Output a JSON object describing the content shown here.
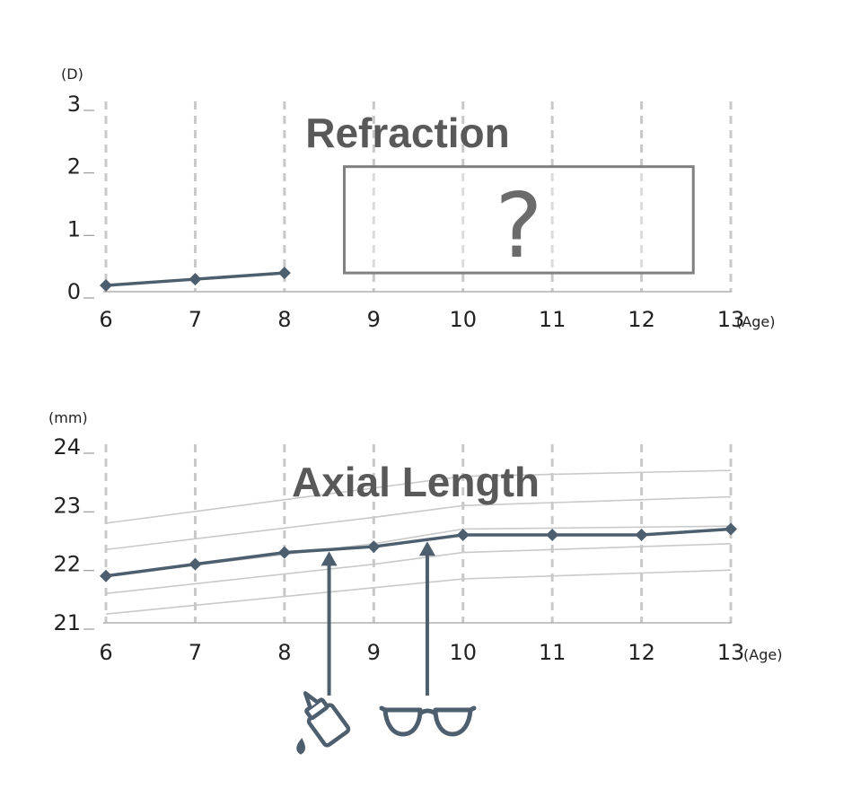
{
  "chart_data": [
    {
      "type": "line",
      "title": "Refraction",
      "yunit": "(D)",
      "xunit": "(Age)",
      "x_ticks": [
        "6",
        "7",
        "8",
        "9",
        "10",
        "11",
        "12",
        "13"
      ],
      "y_ticks": [
        "0",
        "1",
        "2",
        "3"
      ],
      "xlim": [
        6,
        13
      ],
      "ylim": [
        0,
        3
      ],
      "grid": "vertical dashed",
      "series": [
        {
          "x": [
            6,
            7,
            8
          ],
          "y": [
            0.1,
            0.2,
            0.3
          ],
          "marker": "diamond",
          "color": "#4d5e6e"
        }
      ],
      "annotation": {
        "text": "?",
        "x_range": [
          8.67,
          12.58
        ],
        "y_range": [
          0.3,
          2.0
        ]
      }
    },
    {
      "type": "line",
      "title": "Axial Length",
      "yunit": "(mm)",
      "xunit": "(Age)",
      "x_ticks": [
        "6",
        "7",
        "8",
        "9",
        "10",
        "11",
        "12",
        "13"
      ],
      "y_ticks": [
        "21",
        "22",
        "23",
        "24"
      ],
      "xlim": [
        6,
        13
      ],
      "ylim": [
        21,
        24
      ],
      "grid": "vertical dashed",
      "series": [
        {
          "x": [
            6,
            7,
            8,
            9,
            10,
            11,
            12,
            13
          ],
          "y": [
            21.8,
            22.0,
            22.2,
            22.3,
            22.5,
            22.5,
            22.5,
            22.6
          ],
          "marker": "diamond",
          "color": "#4d5e6e"
        }
      ],
      "reference_curves": [
        {
          "x": [
            6,
            9,
            10,
            13
          ],
          "y": [
            22.7,
            23.3,
            23.5,
            23.6
          ]
        },
        {
          "x": [
            6,
            9,
            10,
            13
          ],
          "y": [
            22.25,
            22.8,
            23.0,
            23.15
          ]
        },
        {
          "x": [
            6,
            9,
            10,
            13
          ],
          "y": [
            21.8,
            22.35,
            22.6,
            22.65
          ]
        },
        {
          "x": [
            6,
            9,
            10,
            13
          ],
          "y": [
            21.5,
            22.0,
            22.2,
            22.35
          ]
        },
        {
          "x": [
            6,
            9,
            10,
            13
          ],
          "y": [
            21.15,
            21.6,
            21.75,
            21.9
          ]
        }
      ],
      "markers": [
        {
          "icon": "eye-drop-bottle-icon",
          "x": 8.5
        },
        {
          "icon": "glasses-icon",
          "x": 9.6
        }
      ]
    }
  ]
}
